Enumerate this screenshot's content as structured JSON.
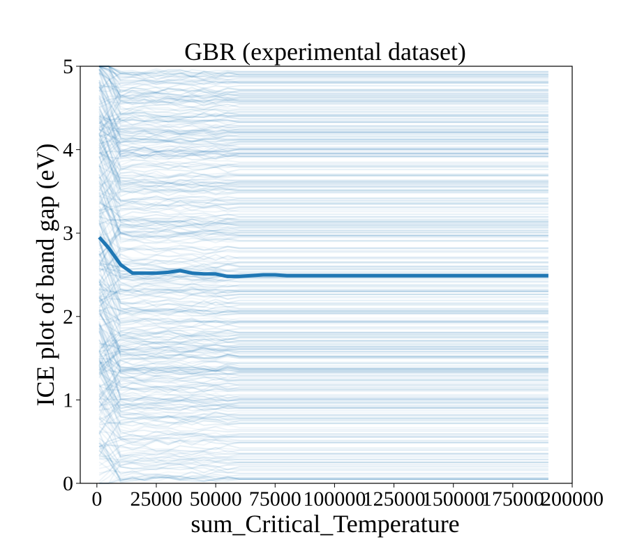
{
  "chart_data": {
    "type": "line",
    "title": "GBR (experimental dataset)",
    "xlabel": "sum_Critical_Temperature",
    "ylabel": "ICE plot of band gap (eV)",
    "xlim": [
      -7000,
      200000
    ],
    "ylim": [
      0,
      5
    ],
    "x_ticks": [
      0,
      25000,
      50000,
      75000,
      100000,
      125000,
      150000,
      175000,
      200000
    ],
    "x_tick_labels": [
      "0",
      "25000",
      "50000",
      "75000",
      "100000",
      "125000",
      "150000",
      "175000",
      "200000"
    ],
    "y_ticks": [
      0,
      1,
      2,
      3,
      4,
      5
    ],
    "y_tick_labels": [
      "0",
      "1",
      "2",
      "3",
      "4",
      "5"
    ],
    "grid": false,
    "series_color": "#1f77b4",
    "ice_line_count": 400,
    "series": [
      {
        "x": [
          1000,
          5000,
          10000,
          15000,
          20000,
          25000,
          30000,
          35000,
          40000,
          45000,
          50000,
          55000,
          60000,
          70000,
          75000,
          80000,
          100000,
          120000,
          140000,
          160000,
          180000,
          190000
        ],
        "values": [
          2.95,
          2.82,
          2.62,
          2.52,
          2.52,
          2.52,
          2.53,
          2.55,
          2.52,
          2.51,
          2.51,
          2.48,
          2.48,
          2.5,
          2.5,
          2.49,
          2.49,
          2.49,
          2.49,
          2.49,
          2.49,
          2.49
        ]
      }
    ]
  }
}
